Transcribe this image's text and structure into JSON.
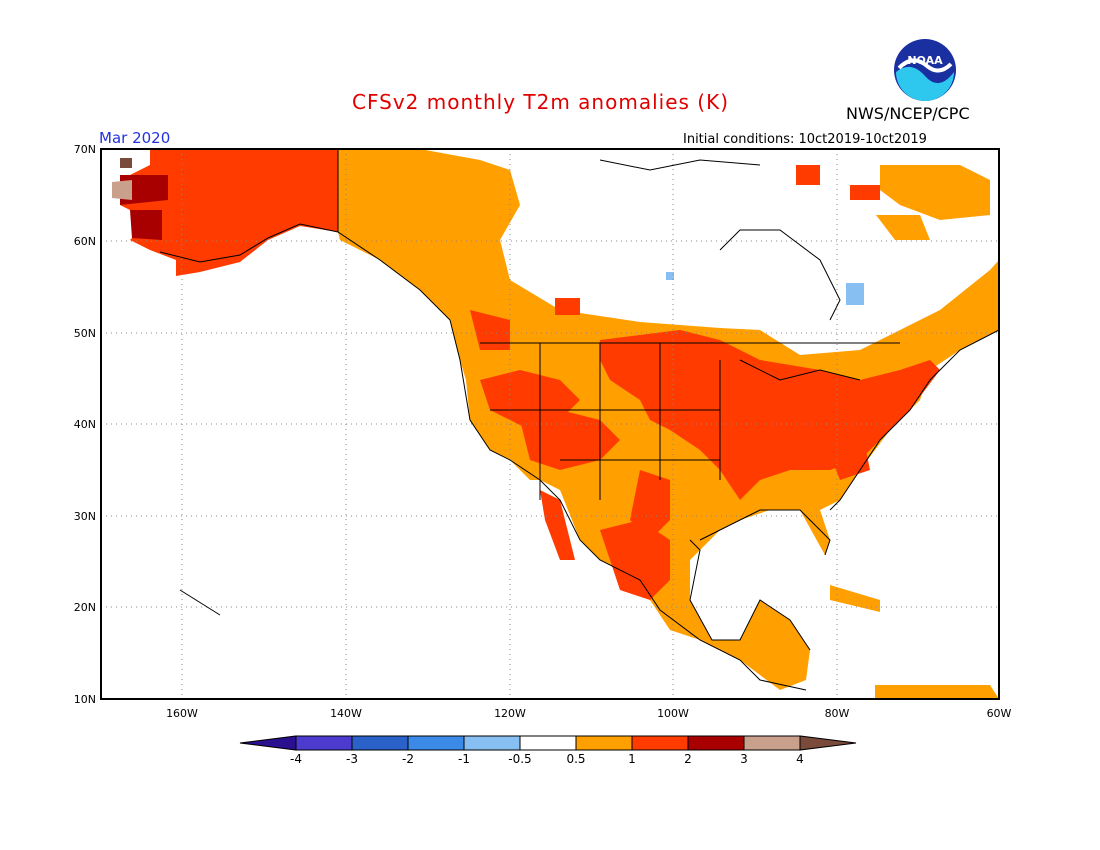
{
  "header": {
    "title": "CFSv2 monthly T2m anomalies (K)",
    "month": "Mar 2020",
    "agency": "NWS/NCEP/CPC",
    "initial_conditions": "Initial conditions: 10ct2019-10ct2019",
    "logo_text": "NOAA"
  },
  "map": {
    "lat_range": [
      10,
      70
    ],
    "lon_range": [
      -170,
      -60
    ],
    "lat_ticks": [
      "70N",
      "60N",
      "50N",
      "40N",
      "30N",
      "20N",
      "10N"
    ],
    "lon_ticks": [
      "160W",
      "140W",
      "120W",
      "100W",
      "80W",
      "60W"
    ]
  },
  "colorbar": {
    "labels": [
      "-4",
      "-3",
      "-2",
      "-1",
      "-0.5",
      "0.5",
      "1",
      "2",
      "3",
      "4"
    ],
    "colors": [
      "#2a0f8f",
      "#4b3ccf",
      "#2a62c9",
      "#3c8ae8",
      "#88bff2",
      "#ffffff",
      "#ff9f00",
      "#ff3b00",
      "#a80000",
      "#c8a08c",
      "#7a4a3a"
    ]
  }
}
